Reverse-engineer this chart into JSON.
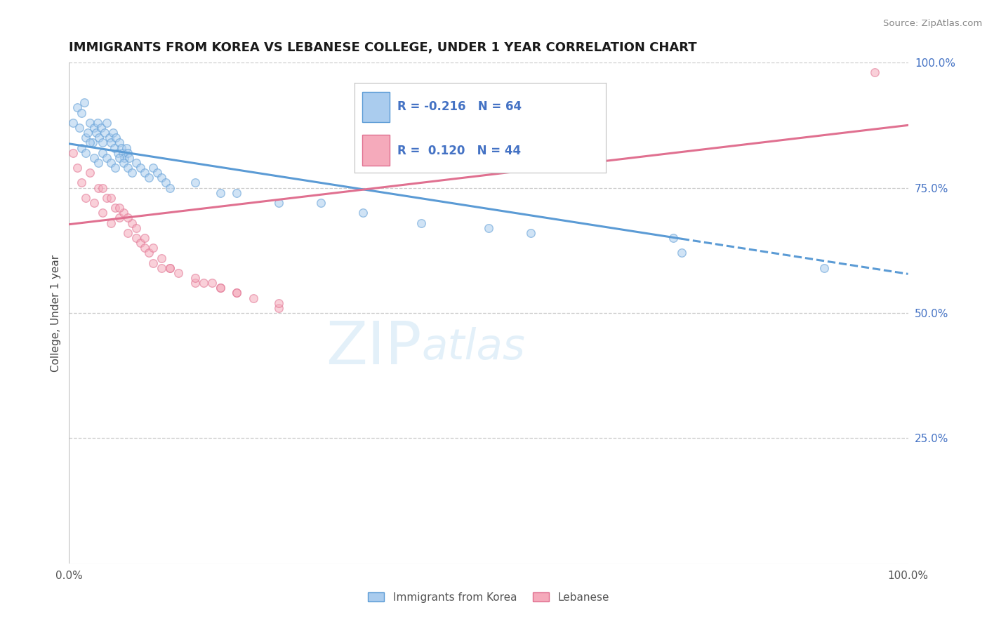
{
  "title": "IMMIGRANTS FROM KOREA VS LEBANESE COLLEGE, UNDER 1 YEAR CORRELATION CHART",
  "source": "Source: ZipAtlas.com",
  "ylabel": "College, Under 1 year",
  "xlim": [
    0.0,
    1.0
  ],
  "ylim": [
    0.0,
    1.0
  ],
  "y_tick_positions_right": [
    1.0,
    0.75,
    0.5,
    0.25
  ],
  "y_tick_labels_right": [
    "100.0%",
    "75.0%",
    "50.0%",
    "25.0%"
  ],
  "color_korea": "#aaccee",
  "color_lebanon": "#f5aabb",
  "color_korea_line": "#5b9bd5",
  "color_lebanon_line": "#e07090",
  "color_text_blue": "#4472c4",
  "background_color": "#ffffff",
  "gridline_color": "#cccccc",
  "korea_line_y_start": 0.838,
  "korea_line_y_end": 0.578,
  "korea_line_solid_end_x": 0.73,
  "lebanon_line_y_start": 0.677,
  "lebanon_line_y_end": 0.875,
  "marker_size": 70,
  "marker_alpha": 0.55,
  "korea_scatter_x": [
    0.005,
    0.01,
    0.012,
    0.015,
    0.018,
    0.02,
    0.022,
    0.025,
    0.028,
    0.03,
    0.032,
    0.034,
    0.036,
    0.038,
    0.04,
    0.042,
    0.045,
    0.048,
    0.05,
    0.052,
    0.054,
    0.056,
    0.058,
    0.06,
    0.062,
    0.064,
    0.066,
    0.068,
    0.07,
    0.072,
    0.015,
    0.02,
    0.025,
    0.03,
    0.035,
    0.04,
    0.045,
    0.05,
    0.055,
    0.06,
    0.065,
    0.07,
    0.075,
    0.08,
    0.085,
    0.09,
    0.095,
    0.1,
    0.105,
    0.11,
    0.115,
    0.12,
    0.15,
    0.18,
    0.2,
    0.25,
    0.3,
    0.35,
    0.42,
    0.5,
    0.55,
    0.72,
    0.73,
    0.9
  ],
  "korea_scatter_y": [
    0.88,
    0.91,
    0.87,
    0.9,
    0.92,
    0.85,
    0.86,
    0.88,
    0.84,
    0.87,
    0.86,
    0.88,
    0.85,
    0.87,
    0.84,
    0.86,
    0.88,
    0.85,
    0.84,
    0.86,
    0.83,
    0.85,
    0.82,
    0.84,
    0.83,
    0.82,
    0.81,
    0.83,
    0.82,
    0.81,
    0.83,
    0.82,
    0.84,
    0.81,
    0.8,
    0.82,
    0.81,
    0.8,
    0.79,
    0.81,
    0.8,
    0.79,
    0.78,
    0.8,
    0.79,
    0.78,
    0.77,
    0.79,
    0.78,
    0.77,
    0.76,
    0.75,
    0.76,
    0.74,
    0.74,
    0.72,
    0.72,
    0.7,
    0.68,
    0.67,
    0.66,
    0.65,
    0.62,
    0.59
  ],
  "lebanon_scatter_x": [
    0.005,
    0.01,
    0.015,
    0.02,
    0.025,
    0.03,
    0.035,
    0.04,
    0.045,
    0.05,
    0.055,
    0.06,
    0.065,
    0.07,
    0.075,
    0.08,
    0.085,
    0.09,
    0.095,
    0.1,
    0.11,
    0.12,
    0.13,
    0.15,
    0.16,
    0.17,
    0.18,
    0.2,
    0.22,
    0.25,
    0.04,
    0.05,
    0.06,
    0.07,
    0.08,
    0.09,
    0.1,
    0.11,
    0.12,
    0.15,
    0.18,
    0.2,
    0.25,
    0.96
  ],
  "lebanon_scatter_y": [
    0.82,
    0.79,
    0.76,
    0.73,
    0.78,
    0.72,
    0.75,
    0.7,
    0.73,
    0.68,
    0.71,
    0.69,
    0.7,
    0.66,
    0.68,
    0.65,
    0.64,
    0.63,
    0.62,
    0.6,
    0.59,
    0.59,
    0.58,
    0.56,
    0.56,
    0.56,
    0.55,
    0.54,
    0.53,
    0.51,
    0.75,
    0.73,
    0.71,
    0.69,
    0.67,
    0.65,
    0.63,
    0.61,
    0.59,
    0.57,
    0.55,
    0.54,
    0.52,
    0.98
  ],
  "watermark_zip": "ZIP",
  "watermark_atlas": "atlas"
}
